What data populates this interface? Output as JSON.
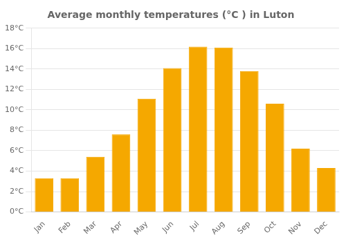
{
  "chart_data": {
    "type": "bar",
    "title": "Average monthly temperatures (°C ) in Luton",
    "categories": [
      "Jan",
      "Feb",
      "Mar",
      "Apr",
      "May",
      "Jun",
      "Jul",
      "Aug",
      "Sep",
      "Oct",
      "Nov",
      "Dec"
    ],
    "values": [
      3.3,
      3.3,
      5.4,
      7.6,
      11.1,
      14.1,
      16.2,
      16.1,
      13.8,
      10.6,
      6.2,
      4.3
    ],
    "color": "#F5A800",
    "ylim": [
      0,
      18
    ],
    "yticks": [
      {
        "value": 0,
        "label": "0°C"
      },
      {
        "value": 2,
        "label": "2°C"
      },
      {
        "value": 4,
        "label": "4°C"
      },
      {
        "value": 6,
        "label": "6°C"
      },
      {
        "value": 8,
        "label": "8°C"
      },
      {
        "value": 10,
        "label": "10°C"
      },
      {
        "value": 12,
        "label": "12°C"
      },
      {
        "value": 14,
        "label": "14°C"
      },
      {
        "value": 16,
        "label": "16°C"
      },
      {
        "value": 18,
        "label": "18°C"
      }
    ],
    "grid": true
  }
}
